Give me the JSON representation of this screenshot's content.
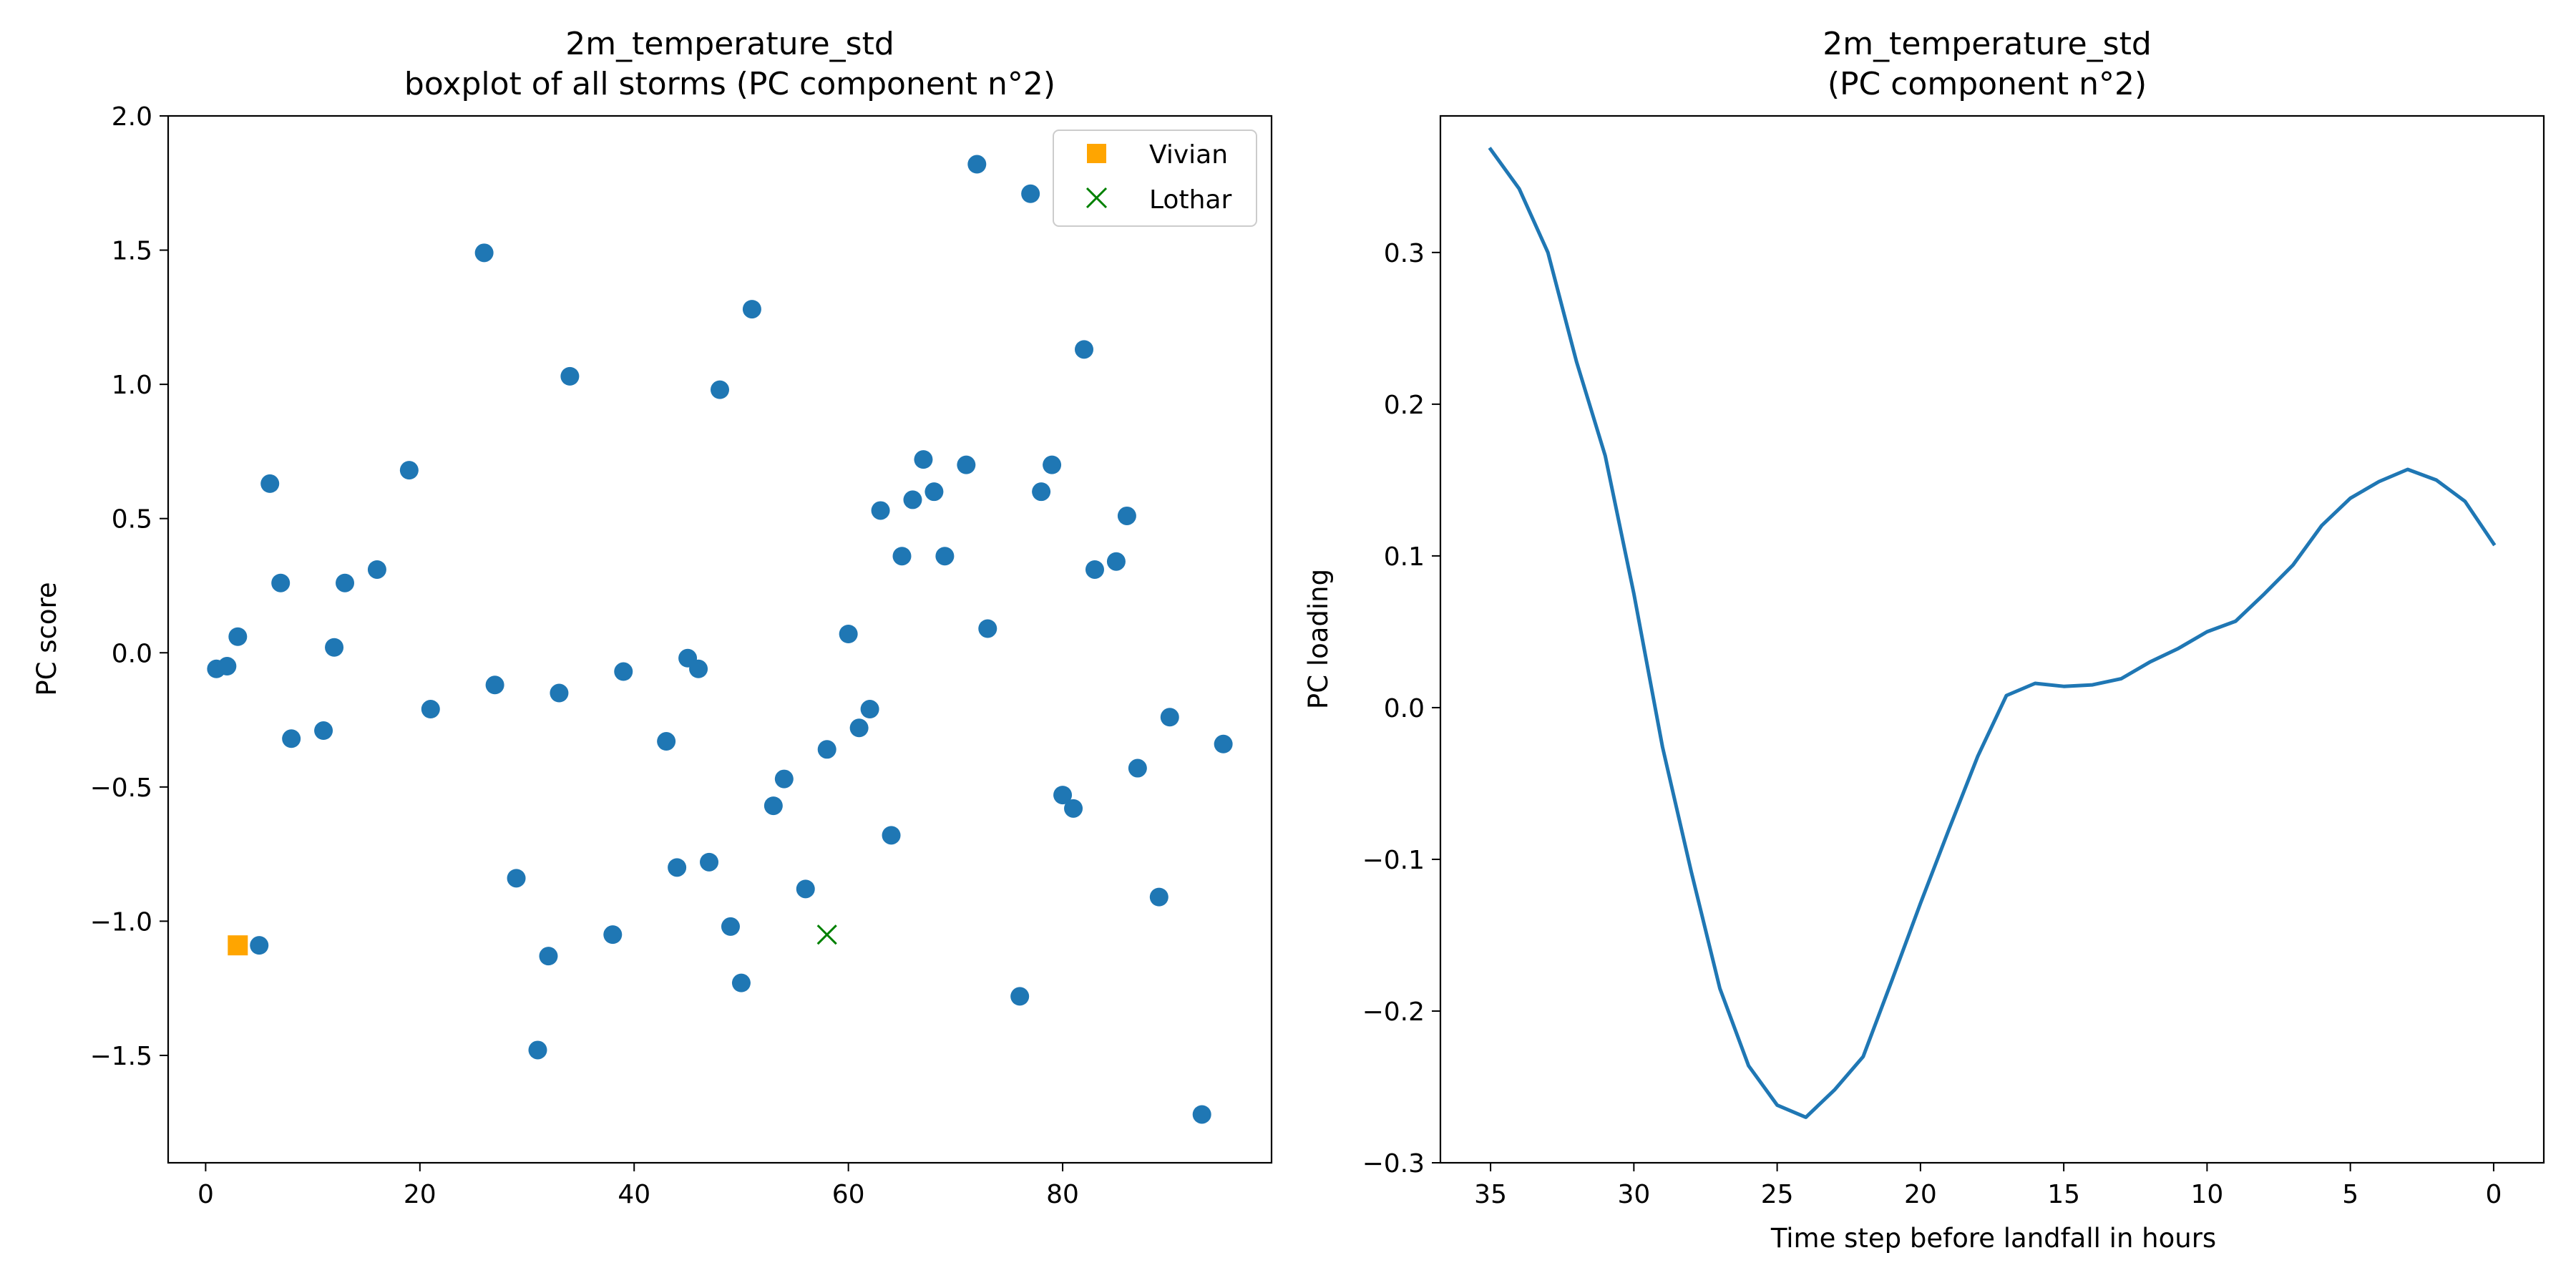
{
  "chart_data": [
    {
      "type": "scatter",
      "title": "2m_temperature_std\nboxplot of all storms (PC component n°2)",
      "xlabel": "",
      "ylabel": "PC score",
      "xlim": [
        -3.5,
        99.5
      ],
      "ylim": [
        -1.9,
        2.0
      ],
      "xticks": [
        0,
        20,
        40,
        60,
        80
      ],
      "yticks": [
        -1.5,
        -1.0,
        -0.5,
        0.0,
        0.5,
        1.0,
        1.5,
        2.0
      ],
      "xtick_labels": [
        "0",
        "20",
        "40",
        "60",
        "80"
      ],
      "ytick_labels": [
        "−1.5",
        "−1.0",
        "−0.5",
        "0.0",
        "0.5",
        "1.0",
        "1.5",
        "2.0"
      ],
      "grid": false,
      "legend_position": "top-right",
      "series": [
        {
          "name": "",
          "color": "#1f77b4",
          "marker": "circle",
          "points": [
            [
              1,
              -0.06
            ],
            [
              2,
              -0.05
            ],
            [
              3,
              0.06
            ],
            [
              5,
              -1.09
            ],
            [
              6,
              0.63
            ],
            [
              7,
              0.26
            ],
            [
              8,
              -0.32
            ],
            [
              11,
              -0.29
            ],
            [
              12,
              0.02
            ],
            [
              13,
              0.26
            ],
            [
              16,
              0.31
            ],
            [
              19,
              0.68
            ],
            [
              21,
              -0.21
            ],
            [
              26,
              1.49
            ],
            [
              27,
              -0.12
            ],
            [
              29,
              -0.84
            ],
            [
              31,
              -1.48
            ],
            [
              32,
              -1.13
            ],
            [
              33,
              -0.15
            ],
            [
              34,
              1.03
            ],
            [
              38,
              -1.05
            ],
            [
              39,
              -0.07
            ],
            [
              43,
              -0.33
            ],
            [
              44,
              -0.8
            ],
            [
              45,
              -0.02
            ],
            [
              46,
              -0.06
            ],
            [
              47,
              -0.78
            ],
            [
              48,
              0.98
            ],
            [
              49,
              -1.02
            ],
            [
              50,
              -1.23
            ],
            [
              51,
              1.28
            ],
            [
              53,
              -0.57
            ],
            [
              54,
              -0.47
            ],
            [
              56,
              -0.88
            ],
            [
              58,
              -0.36
            ],
            [
              60,
              0.07
            ],
            [
              61,
              -0.28
            ],
            [
              62,
              -0.21
            ],
            [
              63,
              0.53
            ],
            [
              64,
              -0.68
            ],
            [
              65,
              0.36
            ],
            [
              66,
              0.57
            ],
            [
              67,
              0.72
            ],
            [
              68,
              0.6
            ],
            [
              69,
              0.36
            ],
            [
              71,
              0.7
            ],
            [
              72,
              1.82
            ],
            [
              73,
              0.09
            ],
            [
              76,
              -1.28
            ],
            [
              77,
              1.71
            ],
            [
              78,
              0.6
            ],
            [
              79,
              0.7
            ],
            [
              80,
              -0.53
            ],
            [
              81,
              -0.58
            ],
            [
              82,
              1.13
            ],
            [
              83,
              0.31
            ],
            [
              85,
              0.34
            ],
            [
              86,
              0.51
            ],
            [
              87,
              -0.43
            ],
            [
              89,
              -0.91
            ],
            [
              90,
              -0.24
            ],
            [
              93,
              -1.72
            ],
            [
              95,
              -0.34
            ]
          ]
        },
        {
          "name": "Vivian",
          "color": "#ffa500",
          "marker": "square",
          "points": [
            [
              3,
              -1.09
            ]
          ]
        },
        {
          "name": "Lothar",
          "color": "#008000",
          "marker": "x",
          "points": [
            [
              58,
              -1.05
            ]
          ]
        }
      ]
    },
    {
      "type": "line",
      "title": "2m_temperature_std\n(PC component n°2)",
      "xlabel": "Time step before landfall in hours",
      "ylabel": "PC loading",
      "xlim": [
        36.75,
        -1.75
      ],
      "ylim": [
        -0.3,
        0.39
      ],
      "xticks": [
        35,
        30,
        25,
        20,
        15,
        10,
        5,
        0
      ],
      "yticks": [
        -0.3,
        -0.2,
        -0.1,
        0.0,
        0.1,
        0.2,
        0.3
      ],
      "xtick_labels": [
        "35",
        "30",
        "25",
        "20",
        "15",
        "10",
        "5",
        "0"
      ],
      "ytick_labels": [
        "−0.3",
        "−0.2",
        "−0.1",
        "0.0",
        "0.1",
        "0.2",
        "0.3"
      ],
      "grid": false,
      "series": [
        {
          "name": "",
          "color": "#1f77b4",
          "x": [
            35,
            34,
            33,
            32,
            31,
            30,
            29,
            28,
            27,
            26,
            25,
            24,
            23,
            22,
            21,
            20,
            19,
            18,
            17,
            16,
            15,
            14,
            13,
            12,
            11,
            10,
            9,
            8,
            7,
            6,
            5,
            4,
            3,
            2,
            1,
            0
          ],
          "y": [
            0.368,
            0.342,
            0.3,
            0.228,
            0.166,
            0.075,
            -0.026,
            -0.108,
            -0.185,
            -0.236,
            -0.262,
            -0.27,
            -0.252,
            -0.23,
            -0.18,
            -0.129,
            -0.08,
            -0.032,
            0.008,
            0.016,
            0.014,
            0.015,
            0.019,
            0.03,
            0.039,
            0.05,
            0.057,
            0.075,
            0.094,
            0.12,
            0.138,
            0.149,
            0.157,
            0.15,
            0.136,
            0.108
          ]
        }
      ]
    }
  ]
}
